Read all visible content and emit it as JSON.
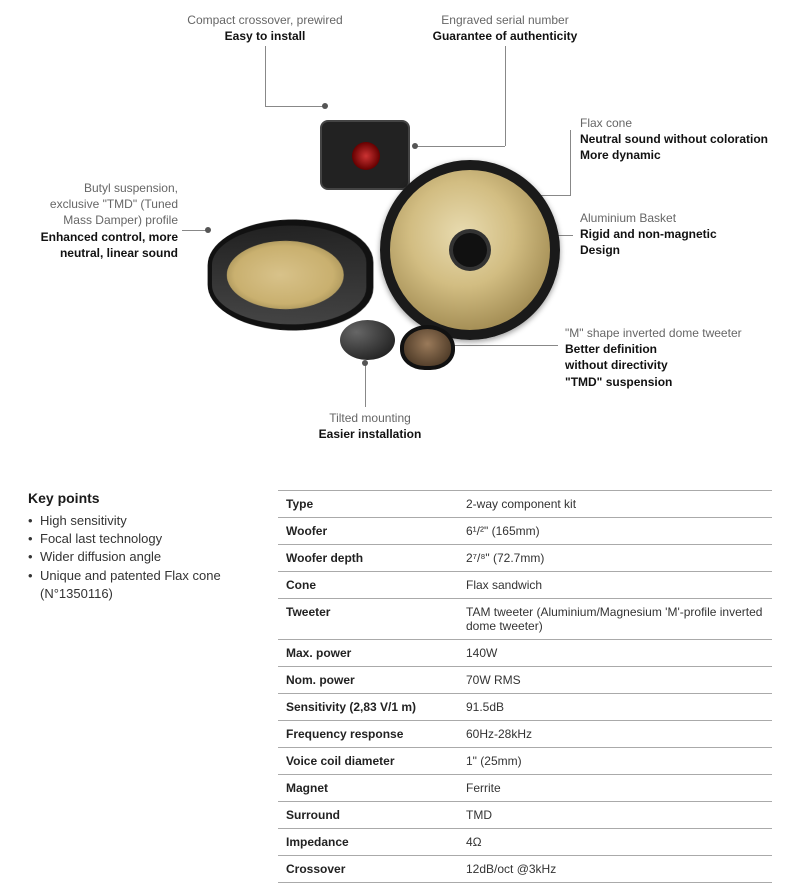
{
  "callouts": {
    "crossover": {
      "light": "Compact crossover, prewired",
      "bold": "Easy to install"
    },
    "serial": {
      "light": "Engraved serial number",
      "bold": "Guarantee of authenticity"
    },
    "flax": {
      "light": "Flax cone",
      "bold1": "Neutral sound without coloration",
      "bold2": "More dynamic"
    },
    "basket": {
      "light": "Aluminium Basket",
      "bold1": "Rigid and non-magnetic",
      "bold2": "Design"
    },
    "suspension": {
      "light1": "Butyl suspension,",
      "light2": "exclusive \"TMD\" (Tuned",
      "light3": "Mass Damper) profile",
      "bold1": "Enhanced control, more",
      "bold2": "neutral, linear sound"
    },
    "tilted": {
      "light": "Tilted mounting",
      "bold": "Easier installation"
    },
    "tweeter": {
      "light": "\"M\" shape inverted dome tweeter",
      "bold1": "Better definition",
      "bold2": "without directivity",
      "bold3": "\"TMD\" suspension"
    }
  },
  "keypoints": {
    "heading": "Key points",
    "items": [
      "High sensitivity",
      "Focal last technology",
      "Wider diffusion angle",
      "Unique and patented Flax cone (N°1350116)"
    ]
  },
  "specs": [
    {
      "label": "Type",
      "value": "2-way component kit"
    },
    {
      "label": "Woofer",
      "value": "6¹/²\" (165mm)"
    },
    {
      "label": "Woofer depth",
      "value": "2⁷/⁸\" (72.7mm)"
    },
    {
      "label": "Cone",
      "value": "Flax sandwich"
    },
    {
      "label": "Tweeter",
      "value": "TAM tweeter (Aluminium/Magnesium 'M'-profile inverted dome tweeter)"
    },
    {
      "label": "Max. power",
      "value": "140W"
    },
    {
      "label": "Nom. power",
      "value": "70W RMS"
    },
    {
      "label": "Sensitivity (2,83 V/1 m)",
      "value": "91.5dB"
    },
    {
      "label": "Frequency response",
      "value": "60Hz-28kHz"
    },
    {
      "label": "Voice coil diameter",
      "value": "1\" (25mm)"
    },
    {
      "label": "Magnet",
      "value": "Ferrite"
    },
    {
      "label": "Surround",
      "value": "TMD"
    },
    {
      "label": "Impedance",
      "value": "4Ω"
    },
    {
      "label": "Crossover",
      "value": "12dB/oct @3kHz"
    }
  ],
  "colors": {
    "text": "#1a1a1a",
    "light": "#666666",
    "line": "#888888",
    "border": "#aaaaaa",
    "flax": "#d2bd82",
    "frame": "#1a1a1a"
  }
}
